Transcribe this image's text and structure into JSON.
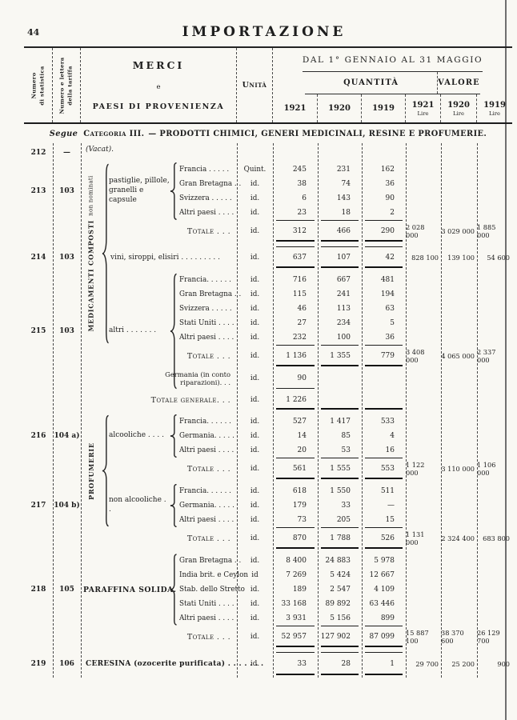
{
  "page": {
    "number": "44",
    "title": "IMPORTAZIONE"
  },
  "table_header": {
    "stat_col_line1": "Numero",
    "stat_col_line2": "di statistica",
    "tariff_col_line1": "Numero e lettera",
    "tariff_col_line2": "della tariffa",
    "merci_title": "MERCI",
    "merci_conj": "e",
    "merci_subtitle": "PAESI DI PROVENIENZA",
    "unit_col": "Unità",
    "period": "DAL 1° GENNAIO AL 31 MAGGIO",
    "quantity_label": "QUANTITÀ",
    "value_label": "VALORE",
    "years": [
      "1921",
      "1920",
      "1919"
    ],
    "lire_label": "Lire"
  },
  "category": {
    "prefix": "Segue",
    "name": "Categoria III.",
    "rest": "— PRODOTTI CHIMICI, GENERI MEDICINALI, RESINE E PROFUMERIE."
  },
  "groups": [
    {
      "name": "MEDICAMENTI COMPOSTI",
      "sub": "non nominati"
    },
    {
      "name": "PROFUMERIE",
      "sub": ""
    }
  ],
  "items": [
    {
      "stat": "213",
      "tariff": "103",
      "label": "pastiglie, pillole, granelli e capsule"
    },
    {
      "stat": "215",
      "tariff": "103",
      "label": "altri . . . . . . ."
    },
    {
      "stat": "216",
      "tariff": "104 a)",
      "label": "alcooliche  . . . ."
    },
    {
      "stat": "217",
      "tariff": "104 b)",
      "label": "non alcooliche . ."
    },
    {
      "stat": "218",
      "tariff": "105",
      "label": "PARAFFINA SOLIDA."
    }
  ],
  "body": {
    "lines": [
      {
        "t": "vacat",
        "stat": "212",
        "tariff": "—",
        "text": "(Vacat)."
      },
      {
        "t": "c",
        "text": "Francia . . . . .",
        "unit": "Quint.",
        "q1": "245",
        "q2": "231",
        "q3": "162"
      },
      {
        "t": "c",
        "text": "Gran Bretagna . .",
        "unit": "id.",
        "q1": "38",
        "q2": "74",
        "q3": "36"
      },
      {
        "t": "c",
        "text": "Svizzera . . . . .",
        "unit": "id.",
        "q1": "6",
        "q2": "143",
        "q3": "90"
      },
      {
        "t": "c",
        "text": "Altri paesi . . . .",
        "unit": "id.",
        "q1": "23",
        "q2": "18",
        "q3": "2"
      },
      {
        "t": "tot",
        "text": "Totale . . .",
        "unit": "id.",
        "q1": "312",
        "q2": "466",
        "q3": "290",
        "v1": "2 028 000",
        "v2": "3 029 000",
        "v3": "1 885 000"
      },
      {
        "t": "gap"
      },
      {
        "t": "item",
        "stat": "214",
        "tariff": "103",
        "text": "vini, siroppi, elisiri . . . . . . . . .",
        "unit": "id.",
        "q1": "637",
        "q2": "107",
        "q3": "42",
        "v1": "828 100",
        "v2": "139 100",
        "v3": "54 600"
      },
      {
        "t": "gap"
      },
      {
        "t": "c",
        "text": "Francia. . . . . .",
        "unit": "id.",
        "q1": "716",
        "q2": "667",
        "q3": "481"
      },
      {
        "t": "c",
        "text": "Gran Bretagna . .",
        "unit": "id.",
        "q1": "115",
        "q2": "241",
        "q3": "194"
      },
      {
        "t": "c",
        "text": "Svizzera . . . . .",
        "unit": "id.",
        "q1": "46",
        "q2": "113",
        "q3": "63"
      },
      {
        "t": "c",
        "text": "Stati Uniti . . . .",
        "unit": "id.",
        "q1": "27",
        "q2": "234",
        "q3": "5"
      },
      {
        "t": "c",
        "text": "Altri paesi . . . .",
        "unit": "id.",
        "q1": "232",
        "q2": "100",
        "q3": "36"
      },
      {
        "t": "tot",
        "text": "Totale . . .",
        "unit": "id.",
        "q1": "1 136",
        "q2": "1 355",
        "q3": "779",
        "v1": "3 408 000",
        "v2": "4 065 000",
        "v3": "2 337 000"
      },
      {
        "t": "germ",
        "line1": "Germania (in conto",
        "line2": "riparazioni). . .",
        "unit": "id.",
        "q1": "90"
      },
      {
        "t": "totgen",
        "text": "Totale generale. . .",
        "unit": "id.",
        "q1": "1 226"
      },
      {
        "t": "gap"
      },
      {
        "t": "c",
        "text": "Francia. . . . . .",
        "unit": "id.",
        "q1": "527",
        "q2": "1 417",
        "q3": "533"
      },
      {
        "t": "c",
        "text": "Germania. . . . .",
        "unit": "id.",
        "q1": "14",
        "q2": "85",
        "q3": "4"
      },
      {
        "t": "c",
        "text": "Altri paesi . . . .",
        "unit": "id.",
        "q1": "20",
        "q2": "53",
        "q3": "16"
      },
      {
        "t": "tot",
        "text": "Totale . . .",
        "unit": "id.",
        "q1": "561",
        "q2": "1 555",
        "q3": "553",
        "v1": "1 122 000",
        "v2": "3 110 000",
        "v3": "1 106 000"
      },
      {
        "t": "gap"
      },
      {
        "t": "c",
        "text": "Francia. . . . . .",
        "unit": "id.",
        "q1": "618",
        "q2": "1 550",
        "q3": "511"
      },
      {
        "t": "c",
        "text": "Germania. . . . .",
        "unit": "id.",
        "q1": "179",
        "q2": "33",
        "q3": "—"
      },
      {
        "t": "c",
        "text": "Altri paesi . . . .",
        "unit": "id.",
        "q1": "73",
        "q2": "205",
        "q3": "15"
      },
      {
        "t": "tot",
        "text": "Totale . . .",
        "unit": "id.",
        "q1": "870",
        "q2": "1 788",
        "q3": "526",
        "v1": "1 131 000",
        "v2": "2 324 400",
        "v3": "683 800"
      },
      {
        "t": "gap"
      },
      {
        "t": "c",
        "text": "Gran Bretagna . .",
        "unit": "id.",
        "q1": "8 400",
        "q2": "24 883",
        "q3": "5 978"
      },
      {
        "t": "c",
        "text": "India brit. e Ceylon",
        "unit": "id",
        "q1": "7 269",
        "q2": "5 424",
        "q3": "12 667"
      },
      {
        "t": "c",
        "text": "Stab. dello Stretto",
        "unit": "id.",
        "q1": "189",
        "q2": "2 547",
        "q3": "4 109"
      },
      {
        "t": "c",
        "text": "Stati Uniti . . . .",
        "unit": "id.",
        "q1": "33 168",
        "q2": "89 892",
        "q3": "63 446"
      },
      {
        "t": "c",
        "text": "Altri paesi . . . .",
        "unit": "id.",
        "q1": "3 931",
        "q2": "5 156",
        "q3": "899"
      },
      {
        "t": "tot",
        "text": "Totale . . .",
        "unit": "id.",
        "q1": "52 957",
        "q2": "127 902",
        "q3": "87 099",
        "v1": "15 887 100",
        "v2": "38 370 600",
        "v3": "26 129 700"
      },
      {
        "t": "gap"
      },
      {
        "t": "item",
        "stat": "219",
        "tariff": "106",
        "text": "CERESINA (ozocerite purificata) . . . . . . .",
        "unit": "id.",
        "q1": "33",
        "q2": "28",
        "q3": "1",
        "v1": "29 700",
        "v2": "25 200",
        "v3": "900"
      }
    ]
  }
}
